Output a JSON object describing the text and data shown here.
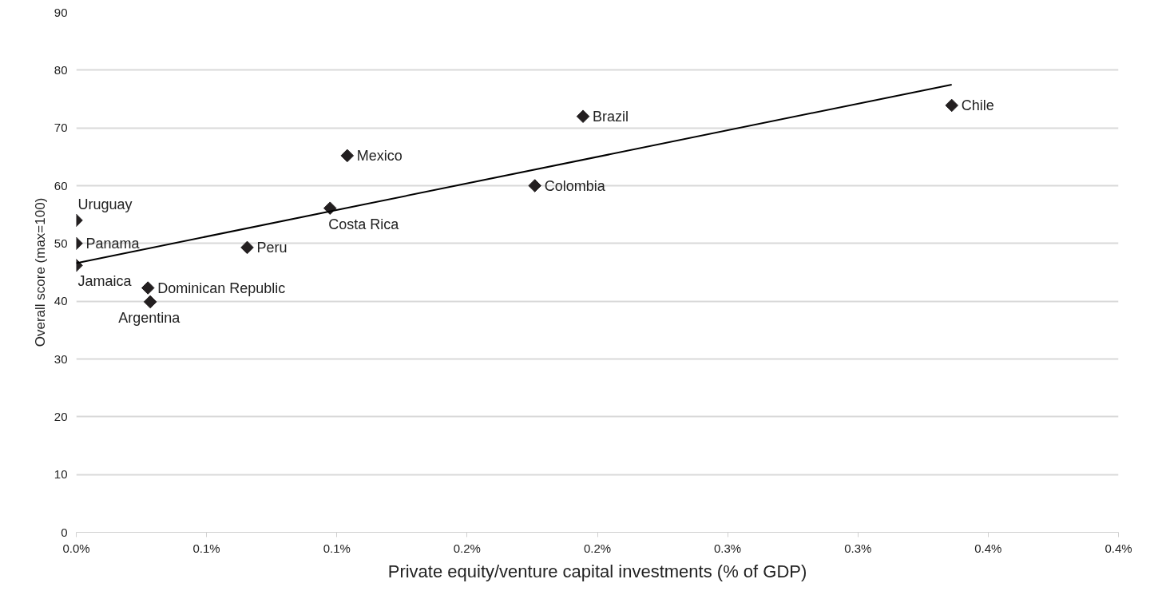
{
  "chart_data": {
    "type": "scatter",
    "xlabel": "Private equity/venture capital investments (% of GDP)",
    "ylabel": "Overall score (max=100)",
    "xlim": [
      0,
      0.4
    ],
    "ylim": [
      0,
      90
    ],
    "xticks": [
      {
        "value": 0,
        "label": "0.0%"
      },
      {
        "value": 0.05,
        "label": "0.1%"
      },
      {
        "value": 0.1,
        "label": "0.1%"
      },
      {
        "value": 0.15,
        "label": "0.2%"
      },
      {
        "value": 0.2,
        "label": "0.2%"
      },
      {
        "value": 0.25,
        "label": "0.3%"
      },
      {
        "value": 0.3,
        "label": "0.3%"
      },
      {
        "value": 0.35,
        "label": "0.4%"
      },
      {
        "value": 0.4,
        "label": "0.4%"
      }
    ],
    "yticks": [
      0,
      10,
      20,
      30,
      40,
      50,
      60,
      70,
      80,
      90
    ],
    "grid": "y",
    "marker": "diamond",
    "series": [
      {
        "color": "#231f20",
        "x": [
          0,
          0,
          0,
          0.0275,
          0.0284,
          0.0656,
          0.0974,
          0.104,
          0.176,
          0.1945,
          0.336
        ],
        "values": [
          54,
          50,
          46.2,
          42.3,
          39.9,
          49.3,
          56.1,
          65.2,
          60,
          72,
          73.9
        ]
      },
      {
        "type": "line",
        "color": "#000000",
        "marker": "none",
        "x": [
          0,
          0.336
        ],
        "values": [
          46.6,
          77.5
        ]
      }
    ],
    "annotations": [
      {
        "text": "Uruguay",
        "x": 0,
        "y": 54
      },
      {
        "text": "Panama",
        "x": 0,
        "y": 50
      },
      {
        "text": "Jamaica",
        "x": 0,
        "y": 46.2
      },
      {
        "text": "Dominican Republic",
        "x": 0.0275,
        "y": 42.3
      },
      {
        "text": "Argentina",
        "x": 0.0284,
        "y": 39.9
      },
      {
        "text": "Peru",
        "x": 0.0656,
        "y": 49.3
      },
      {
        "text": "Costa Rica",
        "x": 0.0974,
        "y": 56.1
      },
      {
        "text": "Mexico",
        "x": 0.104,
        "y": 65.2
      },
      {
        "text": "Colombia",
        "x": 0.176,
        "y": 60
      },
      {
        "text": "Brazil",
        "x": 0.1945,
        "y": 72
      },
      {
        "text": "Chile",
        "x": 0.336,
        "y": 73.9
      }
    ]
  }
}
